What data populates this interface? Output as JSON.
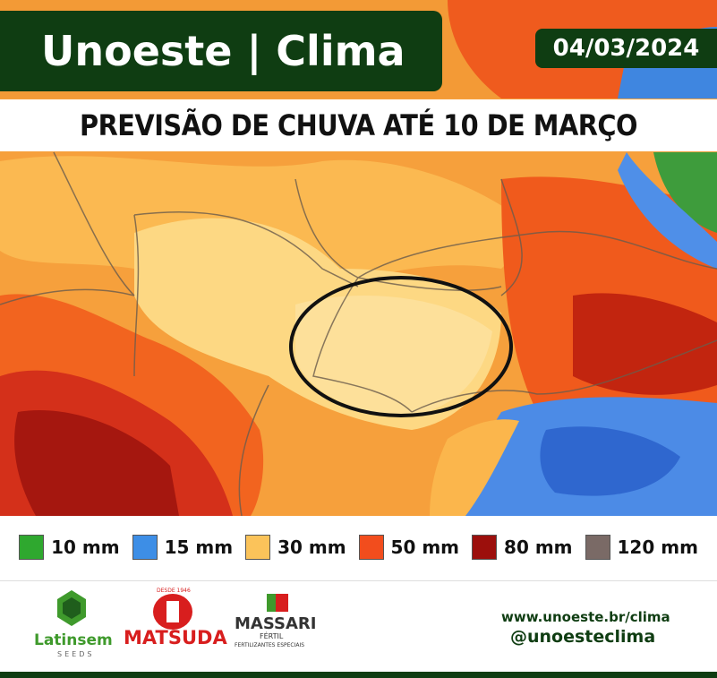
{
  "header": {
    "title": "Unoeste | Clima",
    "date": "04/03/2024"
  },
  "subtitle": "PREVISÃO DE CHUVA ATÉ 10 DE MARÇO",
  "legend": {
    "items": [
      {
        "label": "10 mm",
        "color": "#2fa82f"
      },
      {
        "label": "15 mm",
        "color": "#3d8ee6"
      },
      {
        "label": "30 mm",
        "color": "#fbc35a"
      },
      {
        "label": "50 mm",
        "color": "#f24d1d"
      },
      {
        "label": "80 mm",
        "color": "#9c0f0c"
      },
      {
        "label": "120 mm",
        "color": "#7a6a66"
      }
    ]
  },
  "sponsors": {
    "latinsem": "Latinsem",
    "latinsem_sub": "SEEDS",
    "matsuda_top": "DESDE 1946",
    "matsuda": "MATSUDA",
    "massari": "MASSARI",
    "massari_sub": "FÉRTIL",
    "massari_tag": "FERTILIZANTES ESPECIAIS"
  },
  "footer": {
    "url": "www.unoeste.br/clima",
    "handle": "@unoesteclima"
  }
}
